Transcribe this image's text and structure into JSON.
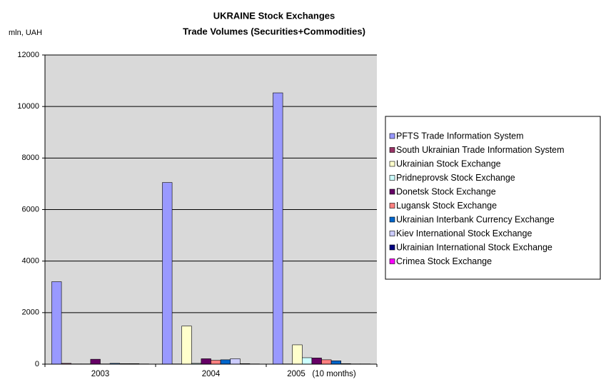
{
  "chart_data": {
    "type": "bar",
    "title": "UKRAINE Stock Exchanges",
    "subtitle": "Trade Volumes (Securities+Commodities)",
    "y_label": "mln, UAH",
    "categories": [
      "2003",
      "2004",
      "2005   (10 months)"
    ],
    "series": [
      {
        "name": "PFTS Trade Information System",
        "color": "#9999ff",
        "values": [
          3200,
          7050,
          10530
        ]
      },
      {
        "name": "South Ukrainian Trade Information System",
        "color": "#993366",
        "values": [
          30,
          10,
          10
        ]
      },
      {
        "name": "Ukrainian Stock Exchange",
        "color": "#ffffcc",
        "values": [
          10,
          1480,
          750
        ]
      },
      {
        "name": "Pridneprovsk Stock Exchange",
        "color": "#ccffff",
        "values": [
          10,
          30,
          250
        ]
      },
      {
        "name": "Donetsk Stock Exchange",
        "color": "#660066",
        "values": [
          190,
          210,
          240
        ]
      },
      {
        "name": "Lugansk Stock Exchange",
        "color": "#ff8080",
        "values": [
          10,
          150,
          170
        ]
      },
      {
        "name": "Ukrainian Interbank Currency Exchange",
        "color": "#0066cc",
        "values": [
          30,
          170,
          130
        ]
      },
      {
        "name": "Kiev International Stock Exchange",
        "color": "#ccccff",
        "values": [
          20,
          210,
          20
        ]
      },
      {
        "name": "Ukrainian International Stock Exchange",
        "color": "#000080",
        "values": [
          20,
          20,
          10
        ]
      },
      {
        "name": "Crimea Stock Exchange",
        "color": "#ff00ff",
        "values": [
          10,
          10,
          10
        ]
      }
    ],
    "ylim": [
      0,
      12000
    ],
    "yticks": [
      0,
      2000,
      4000,
      6000,
      8000,
      10000,
      12000
    ],
    "grid": true,
    "legend": "right"
  }
}
